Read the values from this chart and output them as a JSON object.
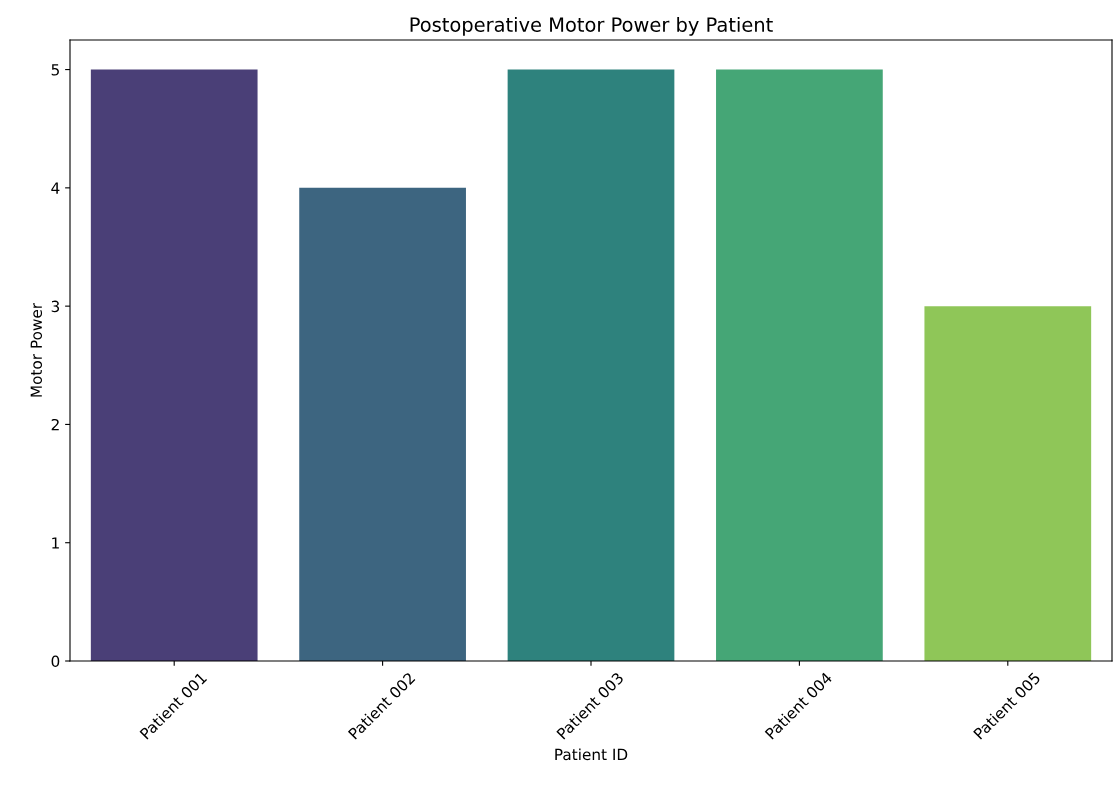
{
  "chart_data": {
    "type": "bar",
    "title": "Postoperative Motor Power by Patient",
    "xlabel": "Patient ID",
    "ylabel": "Motor Power",
    "categories": [
      "Patient 001",
      "Patient 002",
      "Patient 003",
      "Patient 004",
      "Patient 005"
    ],
    "values": [
      5,
      4,
      5,
      5,
      3
    ],
    "colors": [
      "#4a3f77",
      "#3d6580",
      "#2e827d",
      "#45a676",
      "#8fc658"
    ],
    "ylim": [
      0,
      5.25
    ],
    "yticks": [
      0,
      1,
      2,
      3,
      4,
      5
    ],
    "grid": false,
    "legend": false
  }
}
